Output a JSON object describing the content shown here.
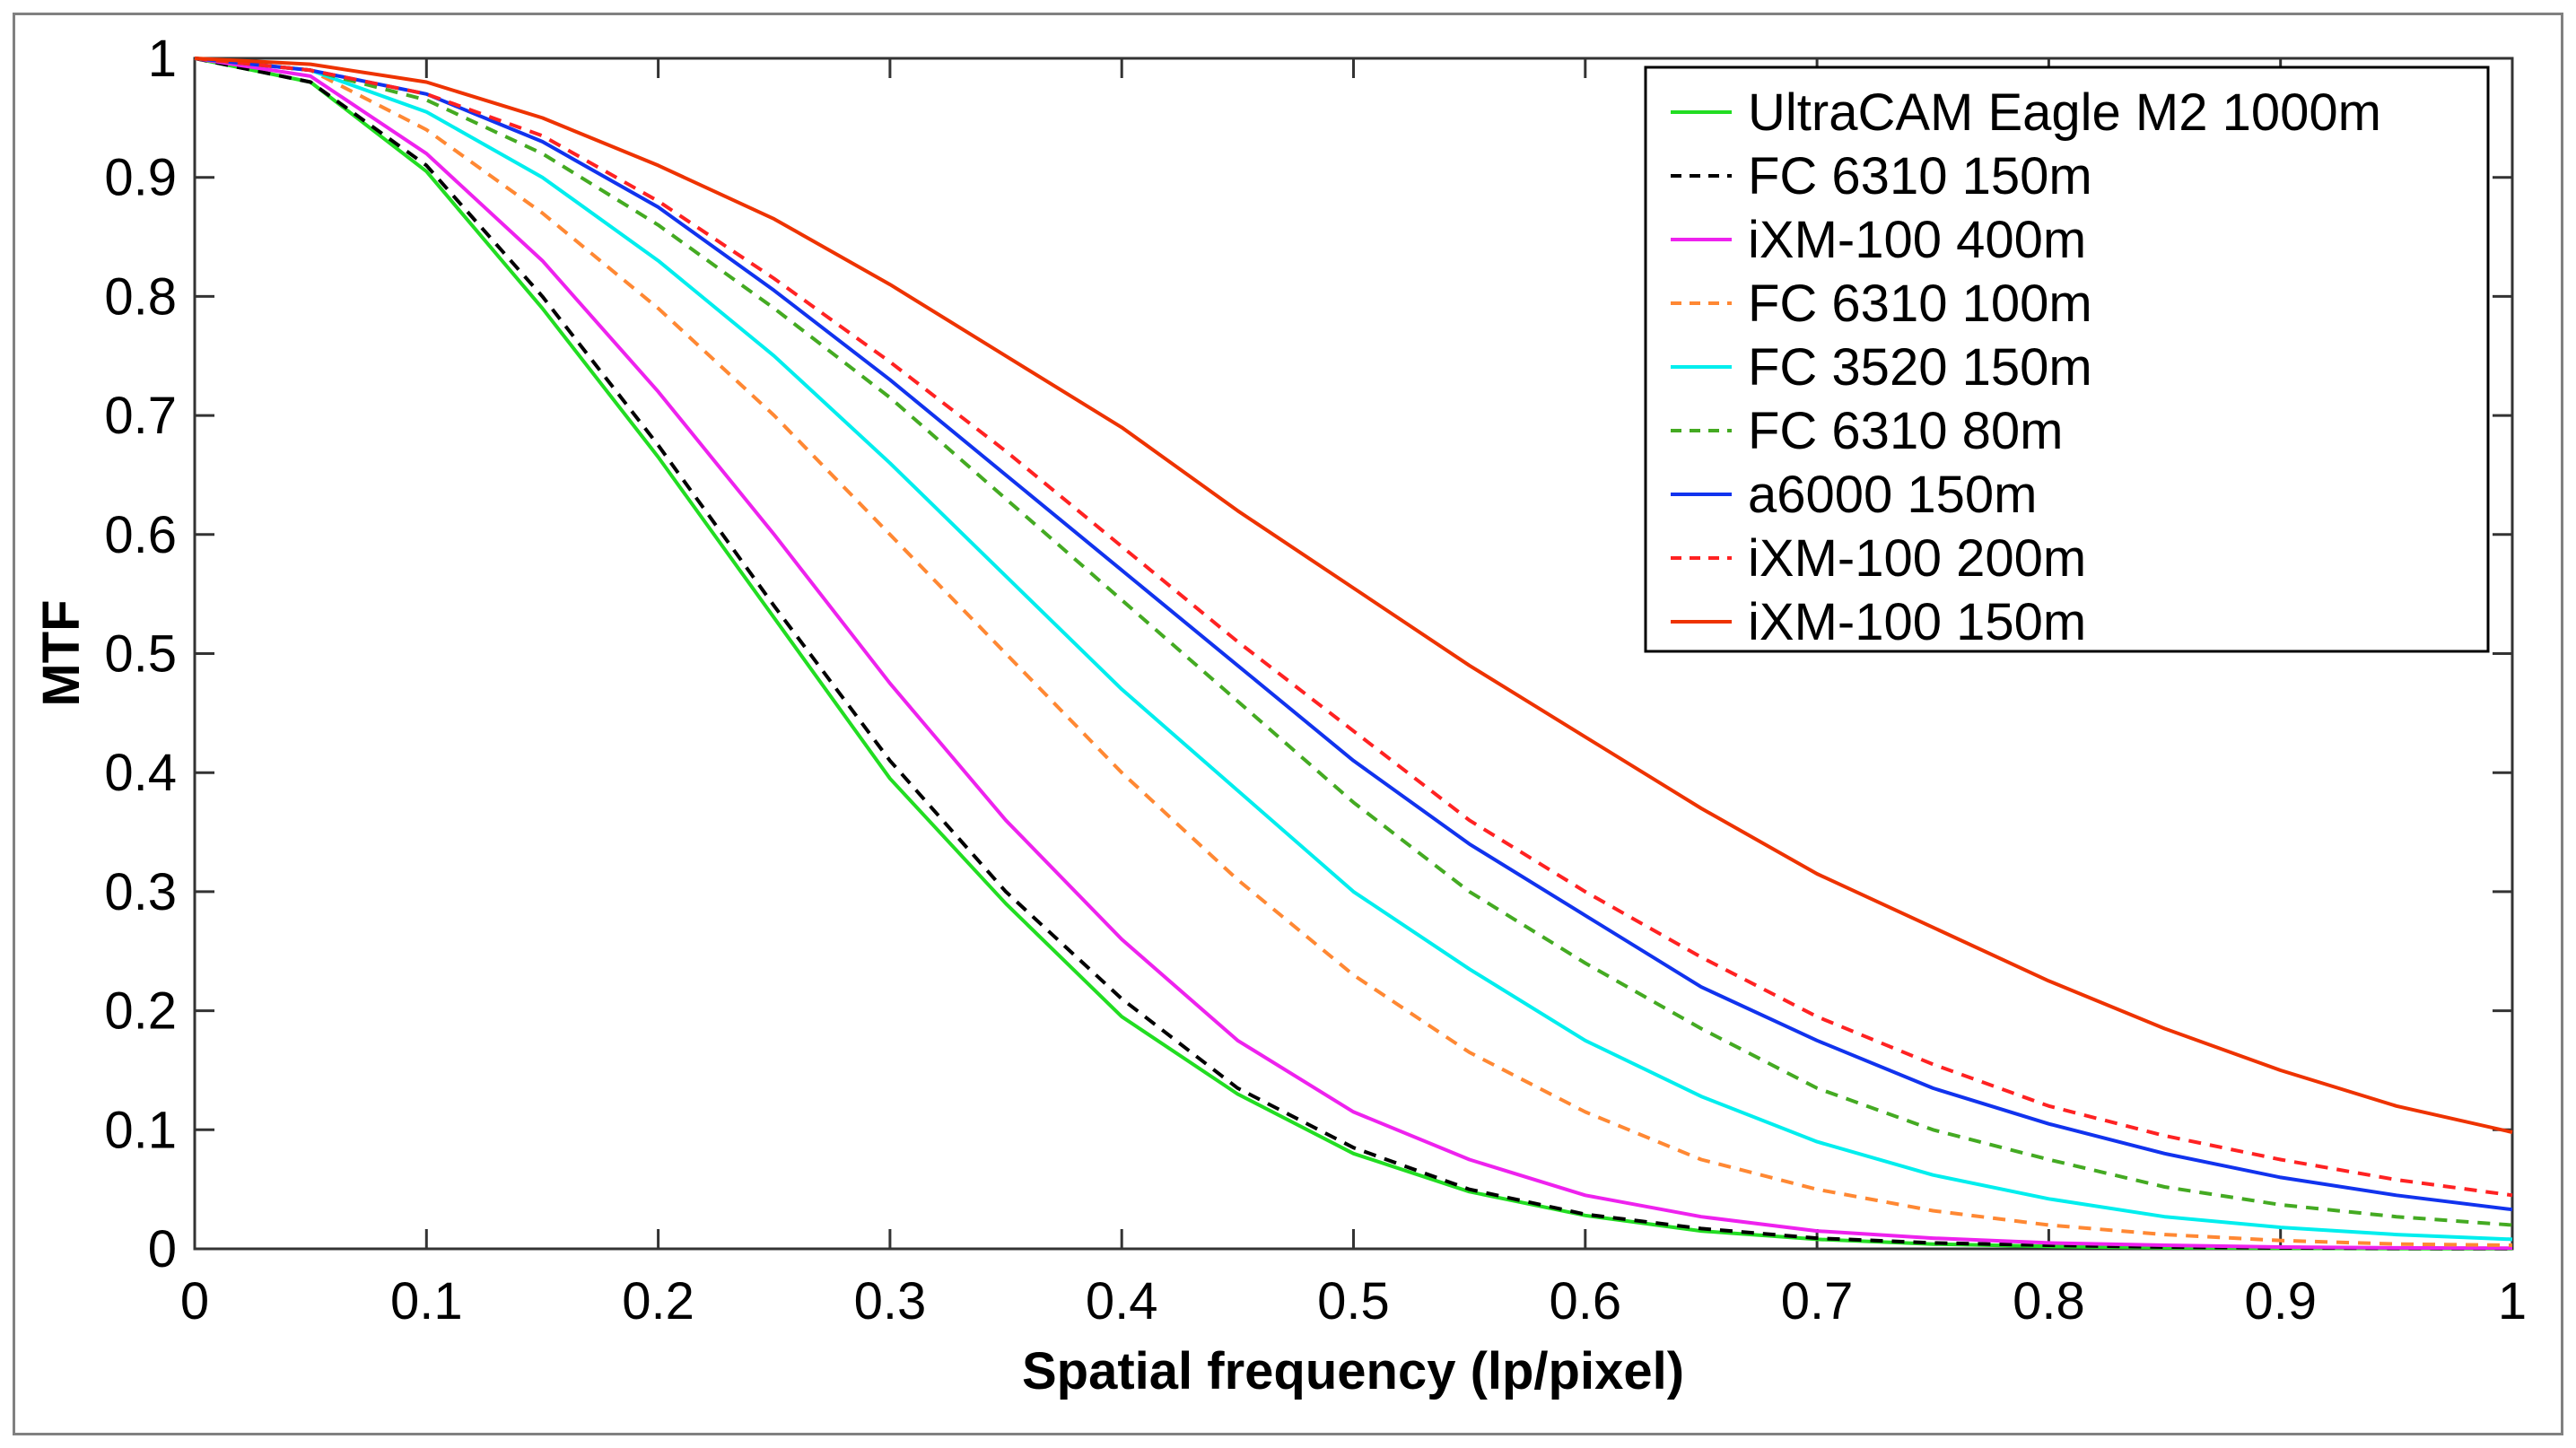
{
  "chart_data": {
    "type": "line",
    "title": "",
    "xlabel": "Spatial frequency (lp/pixel)",
    "ylabel": "MTF",
    "xlim": [
      0,
      1
    ],
    "ylim": [
      0,
      1
    ],
    "xticks": [
      0,
      0.1,
      0.2,
      0.3,
      0.4,
      0.5,
      0.6,
      0.7,
      0.8,
      0.9,
      1
    ],
    "xtick_labels": [
      "0",
      "0.1",
      "0.2",
      "0.3",
      "0.4",
      "0.5",
      "0.6",
      "0.7",
      "0.8",
      "0.9",
      "1"
    ],
    "yticks": [
      0,
      0.1,
      0.2,
      0.3,
      0.4,
      0.5,
      0.6,
      0.7,
      0.8,
      0.9,
      1
    ],
    "ytick_labels": [
      "0",
      "0.1",
      "0.2",
      "0.3",
      "0.4",
      "0.5",
      "0.6",
      "0.7",
      "0.8",
      "0.9",
      "1"
    ],
    "grid": false,
    "legend_position": "top-right",
    "x": [
      0,
      0.05,
      0.1,
      0.15,
      0.2,
      0.25,
      0.3,
      0.35,
      0.4,
      0.45,
      0.5,
      0.55,
      0.6,
      0.65,
      0.7,
      0.75,
      0.8,
      0.85,
      0.9,
      0.95,
      1
    ],
    "series": [
      {
        "name": "UltraCAM Eagle M2 1000m",
        "color": "#22dd22",
        "dash": false,
        "values": [
          1,
          0.98,
          0.905,
          0.79,
          0.665,
          0.53,
          0.395,
          0.29,
          0.195,
          0.13,
          0.08,
          0.048,
          0.028,
          0.015,
          0.008,
          0.004,
          0.002,
          0.001,
          0.0005,
          0.0002,
          0.0001
        ]
      },
      {
        "name": "FC 6310 150m",
        "color": "#000000",
        "dash": true,
        "values": [
          1,
          0.98,
          0.91,
          0.8,
          0.675,
          0.54,
          0.41,
          0.3,
          0.21,
          0.135,
          0.085,
          0.05,
          0.029,
          0.017,
          0.009,
          0.005,
          0.003,
          0.0015,
          0.0008,
          0.0004,
          0.0002
        ]
      },
      {
        "name": "iXM-100 400m",
        "color": "#ee22ee",
        "dash": false,
        "values": [
          1,
          0.985,
          0.92,
          0.83,
          0.72,
          0.6,
          0.475,
          0.36,
          0.26,
          0.175,
          0.115,
          0.075,
          0.045,
          0.027,
          0.015,
          0.009,
          0.005,
          0.003,
          0.0015,
          0.0008,
          0.0005
        ]
      },
      {
        "name": "FC 6310 100m",
        "color": "#ff8833",
        "dash": true,
        "values": [
          1,
          0.99,
          0.94,
          0.87,
          0.79,
          0.7,
          0.6,
          0.5,
          0.4,
          0.31,
          0.23,
          0.165,
          0.115,
          0.075,
          0.05,
          0.032,
          0.02,
          0.012,
          0.007,
          0.004,
          0.003
        ]
      },
      {
        "name": "FC 3520 150m",
        "color": "#00eeee",
        "dash": false,
        "values": [
          1,
          0.99,
          0.955,
          0.9,
          0.83,
          0.75,
          0.66,
          0.565,
          0.47,
          0.385,
          0.3,
          0.235,
          0.175,
          0.128,
          0.09,
          0.062,
          0.042,
          0.027,
          0.018,
          0.012,
          0.008
        ]
      },
      {
        "name": "FC 6310 80m",
        "color": "#44aa22",
        "dash": true,
        "values": [
          1,
          0.99,
          0.965,
          0.92,
          0.86,
          0.79,
          0.715,
          0.63,
          0.545,
          0.46,
          0.375,
          0.3,
          0.24,
          0.185,
          0.135,
          0.1,
          0.075,
          0.052,
          0.037,
          0.027,
          0.02
        ]
      },
      {
        "name": "a6000 150m",
        "color": "#1133ee",
        "dash": false,
        "values": [
          1,
          0.99,
          0.97,
          0.93,
          0.875,
          0.805,
          0.73,
          0.65,
          0.57,
          0.49,
          0.41,
          0.34,
          0.28,
          0.22,
          0.175,
          0.135,
          0.105,
          0.08,
          0.06,
          0.045,
          0.033
        ]
      },
      {
        "name": "iXM-100 200m",
        "color": "#ff2222",
        "dash": true,
        "values": [
          1,
          0.99,
          0.97,
          0.935,
          0.88,
          0.815,
          0.745,
          0.67,
          0.59,
          0.51,
          0.435,
          0.36,
          0.3,
          0.245,
          0.195,
          0.155,
          0.12,
          0.095,
          0.075,
          0.058,
          0.045
        ]
      },
      {
        "name": "iXM-100 150m",
        "color": "#ee3300",
        "dash": false,
        "values": [
          1,
          0.995,
          0.98,
          0.95,
          0.91,
          0.865,
          0.81,
          0.75,
          0.69,
          0.62,
          0.555,
          0.49,
          0.43,
          0.37,
          0.315,
          0.27,
          0.225,
          0.185,
          0.15,
          0.12,
          0.098
        ]
      }
    ]
  }
}
